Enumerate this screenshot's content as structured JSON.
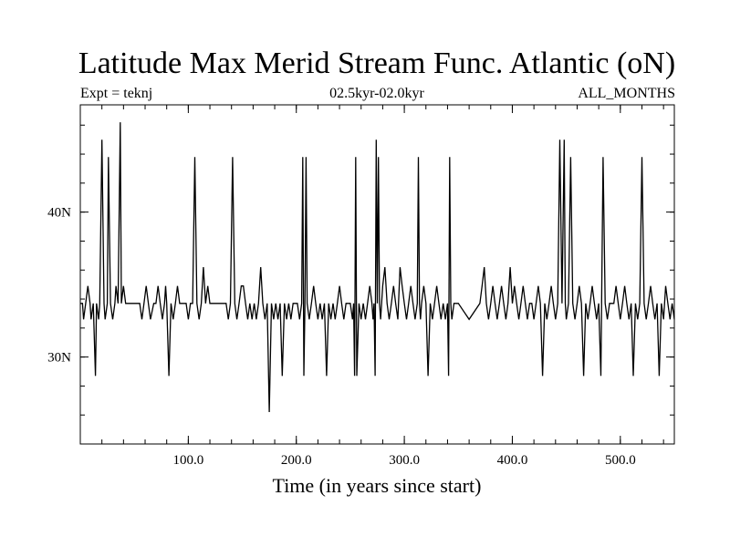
{
  "chart_data": {
    "type": "line",
    "title": "Latitude Max Merid Stream Func. Atlantic (oN)",
    "left_note": "Expt = teknj",
    "subtitle": "02.5kyr-02.0kyr",
    "right_note": "ALL_MONTHS",
    "xlabel": "Time (in years since start)",
    "ylabel": "",
    "xlim": [
      0,
      550
    ],
    "ylim": [
      24.0,
      47.4
    ],
    "grid": false,
    "x_ticks": [
      {
        "value": 100,
        "label": "100.0"
      },
      {
        "value": 200,
        "label": "200.0"
      },
      {
        "value": 300,
        "label": "300.0"
      },
      {
        "value": 400,
        "label": "400.0"
      },
      {
        "value": 500,
        "label": "500.0"
      }
    ],
    "y_ticks": [
      {
        "value": 30,
        "label": "30N"
      },
      {
        "value": 40,
        "label": "40N"
      }
    ],
    "x_minor_step": 20,
    "y_minor_step": 2,
    "series": [
      {
        "color": "#000000",
        "x": [
          0,
          2,
          3,
          5,
          7,
          9,
          10,
          12,
          14,
          15,
          17,
          18,
          20,
          22,
          23,
          25,
          26,
          28,
          30,
          32,
          33,
          35,
          37,
          38,
          40,
          42,
          45,
          50,
          55,
          57,
          59,
          61,
          63,
          65,
          68,
          70,
          72,
          74,
          76,
          78,
          79,
          80,
          82,
          84,
          86,
          88,
          90,
          92,
          95,
          98,
          100,
          102,
          104,
          106,
          108,
          110,
          112,
          114,
          116,
          118,
          120,
          130,
          135,
          137,
          139,
          141,
          143,
          145,
          147,
          149,
          151,
          153,
          155,
          157,
          159,
          161,
          163,
          165,
          167,
          169,
          171,
          173,
          175,
          177,
          179,
          181,
          183,
          185,
          187,
          189,
          191,
          193,
          195,
          197,
          199,
          201,
          203,
          205,
          206,
          207,
          208,
          209,
          210,
          212,
          214,
          216,
          218,
          220,
          222,
          224,
          226,
          228,
          230,
          232,
          234,
          236,
          238,
          240,
          242,
          244,
          246,
          248,
          250,
          252,
          253,
          254,
          255,
          256,
          258,
          260,
          262,
          264,
          266,
          268,
          270,
          271,
          272,
          273,
          274,
          275,
          276,
          277,
          278,
          280,
          282,
          284,
          286,
          288,
          290,
          292,
          294,
          296,
          298,
          300,
          302,
          304,
          306,
          308,
          310,
          312,
          313,
          314,
          315,
          316,
          318,
          320,
          322,
          324,
          326,
          328,
          330,
          332,
          334,
          336,
          338,
          340,
          341,
          342,
          343,
          344,
          346,
          348,
          350,
          360,
          370,
          372,
          374,
          376,
          378,
          380,
          382,
          384,
          386,
          388,
          390,
          392,
          394,
          396,
          398,
          400,
          402,
          404,
          406,
          408,
          410,
          412,
          414,
          416,
          418,
          420,
          422,
          424,
          426,
          428,
          430,
          432,
          434,
          436,
          438,
          440,
          442,
          444,
          446,
          448,
          449,
          450,
          452,
          454,
          456,
          458,
          460,
          462,
          464,
          466,
          468,
          470,
          472,
          474,
          476,
          478,
          480,
          482,
          484,
          486,
          488,
          490,
          492,
          494,
          496,
          498,
          500,
          502,
          504,
          506,
          508,
          510,
          512,
          514,
          516,
          518,
          520,
          522,
          524,
          526,
          528,
          530,
          532,
          534,
          536,
          538,
          540,
          542,
          544,
          546,
          548,
          550
        ],
        "y": [
          33.7,
          33.7,
          32.6,
          33.7,
          34.9,
          33.7,
          32.6,
          33.7,
          28.7,
          33.7,
          32.6,
          33.7,
          45.0,
          33.7,
          32.6,
          33.7,
          43.8,
          33.7,
          32.6,
          33.7,
          34.9,
          33.7,
          46.2,
          33.7,
          34.9,
          33.7,
          33.7,
          33.7,
          33.7,
          32.6,
          33.7,
          34.9,
          33.7,
          32.6,
          33.7,
          33.7,
          34.9,
          33.7,
          32.6,
          33.7,
          34.9,
          33.7,
          28.7,
          33.7,
          32.6,
          33.7,
          34.9,
          33.7,
          33.7,
          33.7,
          32.6,
          33.7,
          33.7,
          43.8,
          33.7,
          32.6,
          33.7,
          36.2,
          33.7,
          34.9,
          33.7,
          33.7,
          33.7,
          32.6,
          33.7,
          43.8,
          33.7,
          32.6,
          33.7,
          34.9,
          34.9,
          33.7,
          32.6,
          33.7,
          32.6,
          33.7,
          32.6,
          33.7,
          36.2,
          33.7,
          32.6,
          33.7,
          26.2,
          33.7,
          32.6,
          33.7,
          32.6,
          33.7,
          28.7,
          33.7,
          32.6,
          33.7,
          32.6,
          33.7,
          33.7,
          33.7,
          32.6,
          33.7,
          43.8,
          28.7,
          33.7,
          43.8,
          33.7,
          32.6,
          33.7,
          34.9,
          33.7,
          32.6,
          33.7,
          32.6,
          33.7,
          28.7,
          33.7,
          32.6,
          33.7,
          32.6,
          33.7,
          34.9,
          33.7,
          32.6,
          33.7,
          33.7,
          33.7,
          32.6,
          33.7,
          28.7,
          43.8,
          28.7,
          33.7,
          32.6,
          33.7,
          32.6,
          33.7,
          34.9,
          33.7,
          32.6,
          33.7,
          28.7,
          45.0,
          33.7,
          43.8,
          33.7,
          32.6,
          34.9,
          36.2,
          33.7,
          32.6,
          33.7,
          34.9,
          33.7,
          32.6,
          36.2,
          34.9,
          33.7,
          32.6,
          33.7,
          34.9,
          33.7,
          32.6,
          33.7,
          43.8,
          33.7,
          32.6,
          33.7,
          34.9,
          33.7,
          28.7,
          33.7,
          32.6,
          33.7,
          34.9,
          33.7,
          32.6,
          33.7,
          32.6,
          33.7,
          28.7,
          43.8,
          33.7,
          32.6,
          33.7,
          33.7,
          33.7,
          32.6,
          33.7,
          34.9,
          36.2,
          33.7,
          32.6,
          33.7,
          34.9,
          33.7,
          32.6,
          33.7,
          34.9,
          33.7,
          32.6,
          33.7,
          36.2,
          33.7,
          34.9,
          33.7,
          32.6,
          33.7,
          34.9,
          33.7,
          32.6,
          33.7,
          33.7,
          32.6,
          33.7,
          34.9,
          33.7,
          28.7,
          33.7,
          32.6,
          33.7,
          34.9,
          33.7,
          32.6,
          33.7,
          45.0,
          33.7,
          45.0,
          33.7,
          32.6,
          33.7,
          43.8,
          33.7,
          32.6,
          33.7,
          34.9,
          33.7,
          28.7,
          33.7,
          32.6,
          33.7,
          34.9,
          33.7,
          32.6,
          33.7,
          28.7,
          43.8,
          33.7,
          32.6,
          33.7,
          33.7,
          33.7,
          34.9,
          33.7,
          32.6,
          33.7,
          34.9,
          33.7,
          32.6,
          33.7,
          28.7,
          33.7,
          32.6,
          33.7,
          43.8,
          33.7,
          32.6,
          33.7,
          34.9,
          33.7,
          32.6,
          33.7,
          28.7,
          33.7,
          32.6,
          34.9,
          33.7,
          32.6,
          33.7,
          32.6
        ]
      }
    ]
  }
}
